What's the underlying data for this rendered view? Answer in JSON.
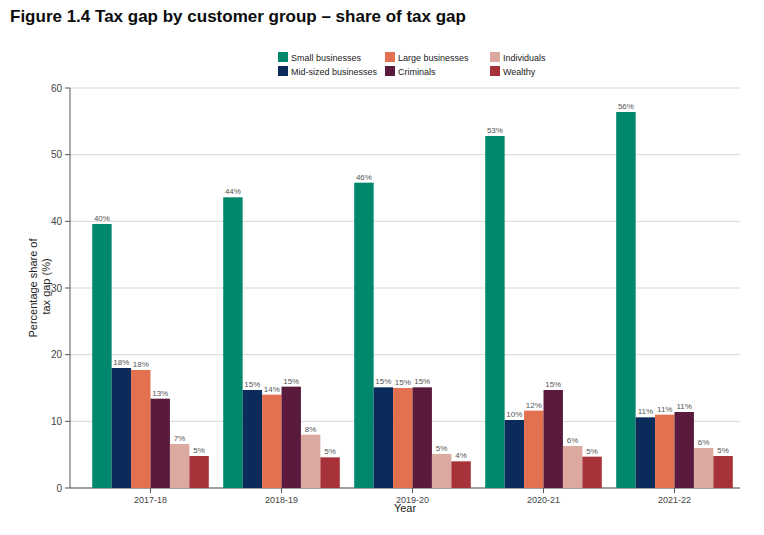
{
  "chart_data": {
    "type": "bar",
    "title": "Figure 1.4 Tax gap by customer group – share of tax gap",
    "x_label": "Year",
    "y_label": "Percentage share of tax gap (%)",
    "categories": [
      "2017-18",
      "2018-19",
      "2019-20",
      "2020-21",
      "2021-22"
    ],
    "series": [
      {
        "name": "Small businesses",
        "color": "#00876c",
        "values": [
          39.6,
          43.6,
          45.8,
          52.8,
          56.4
        ],
        "value_labels": [
          "40%",
          "44%",
          "46%",
          "53%",
          "56%"
        ]
      },
      {
        "name": "Mid-sized businesses",
        "color": "#0b2c5a",
        "values": [
          18.0,
          14.7,
          15.1,
          10.2,
          10.6
        ],
        "value_labels": [
          "18%",
          "15%",
          "15%",
          "10%",
          "11%"
        ]
      },
      {
        "name": "Large businesses",
        "color": "#e3704f",
        "values": [
          17.7,
          14.0,
          15.0,
          11.6,
          11.0
        ],
        "value_labels": [
          "18%",
          "14%",
          "15%",
          "12%",
          "11%"
        ]
      },
      {
        "name": "Criminals",
        "color": "#5a1a3e",
        "values": [
          13.4,
          15.2,
          15.1,
          14.7,
          11.4
        ],
        "value_labels": [
          "13%",
          "15%",
          "15%",
          "15%",
          "11%"
        ]
      },
      {
        "name": "Individuals",
        "color": "#dba9a0",
        "values": [
          6.6,
          8.0,
          5.1,
          6.3,
          6.0
        ],
        "value_labels": [
          "7%",
          "8%",
          "5%",
          "6%",
          "6%"
        ]
      },
      {
        "name": "Wealthy",
        "color": "#a8323a",
        "values": [
          4.8,
          4.6,
          4.0,
          4.7,
          4.8
        ],
        "value_labels": [
          "5%",
          "5%",
          "4%",
          "5%",
          "5%"
        ]
      }
    ],
    "ylim": [
      0,
      60
    ],
    "yticks": [
      0,
      10,
      20,
      30,
      40,
      50,
      60
    ],
    "grid": true,
    "legend": "top",
    "data_labels": true
  }
}
